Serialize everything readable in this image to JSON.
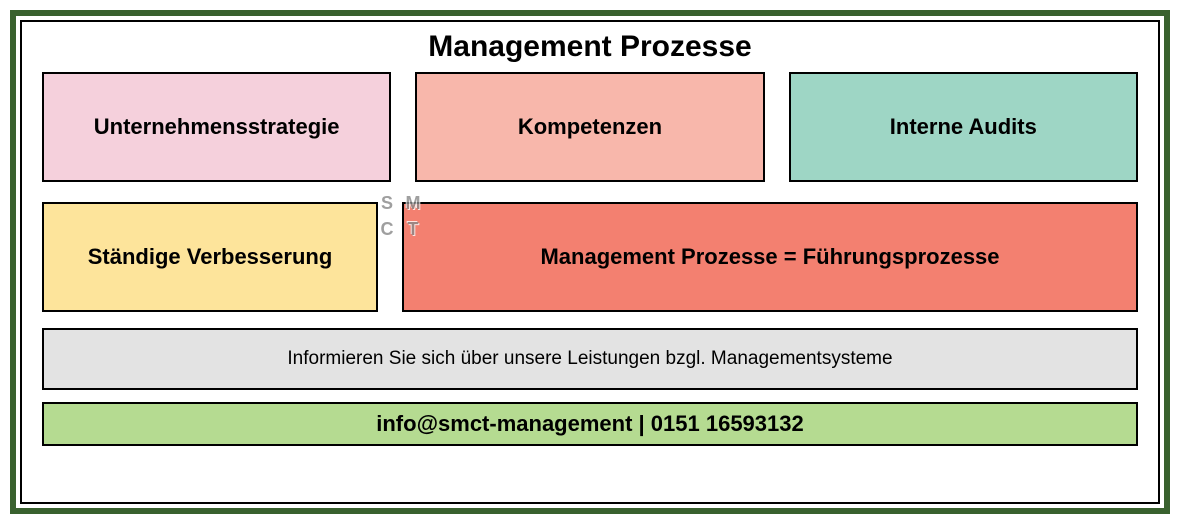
{
  "layout": {
    "outer_border_color": "#39612e",
    "inner_border_color": "#000000",
    "box_border_color": "#000000",
    "background": "#ffffff"
  },
  "title": "Management Prozesse",
  "title_fontsize": 30,
  "row1": [
    {
      "label": "Unternehmensstrategie",
      "bg": "#f5d0dc"
    },
    {
      "label": "Kompetenzen",
      "bg": "#f8b7ab"
    },
    {
      "label": "Interne Audits",
      "bg": "#9ed6c5"
    }
  ],
  "row2": {
    "left": {
      "label": "Ständige Verbesserung",
      "bg": "#fde49b"
    },
    "right": {
      "label": "Management Prozesse = Führungsprozesse",
      "bg": "#f38070"
    }
  },
  "info_bar": {
    "text": "Informieren Sie sich über unsere Leistungen bzgl. Managementsysteme",
    "bg": "#e3e3e3"
  },
  "contact_bar": {
    "text": "info@smct-management | 0151 16593132",
    "bg": "#b5db91"
  },
  "watermark": {
    "letters": [
      "S",
      "M",
      "C",
      "T"
    ]
  }
}
